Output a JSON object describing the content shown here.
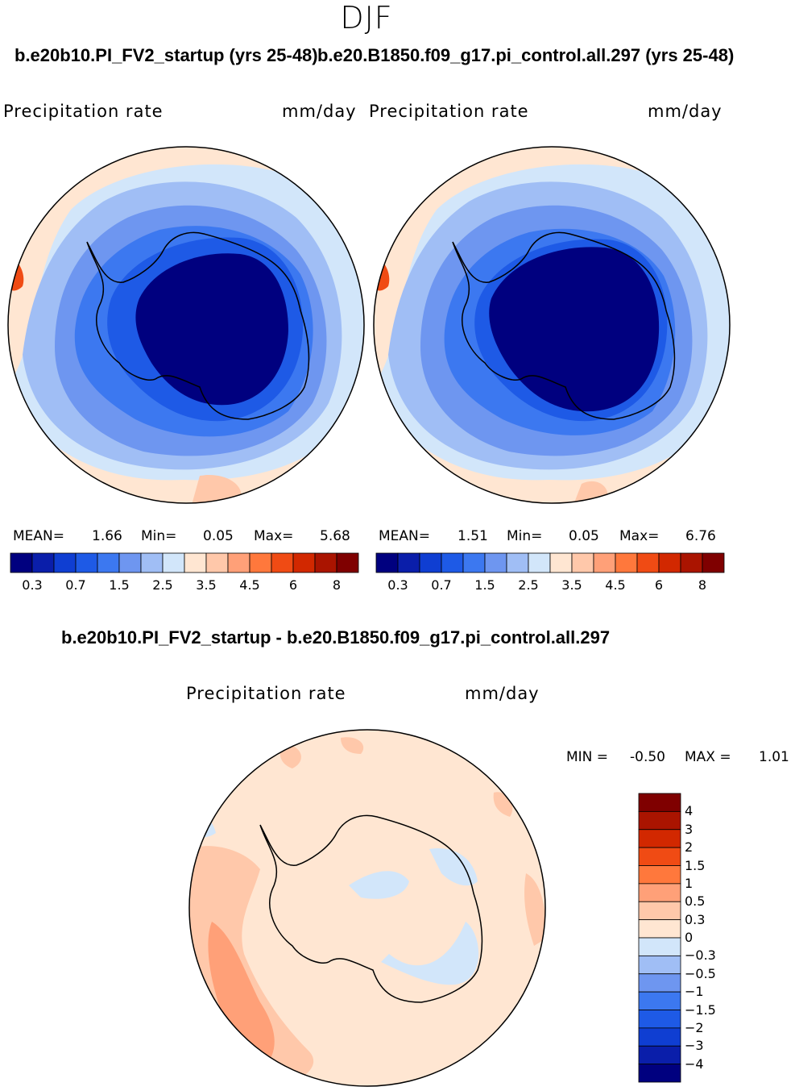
{
  "figure": {
    "season": "DJF",
    "panel_left": {
      "title": "b.e20b10.PI_FV2_startup (yrs 25-48)",
      "variable": "Precipitation rate",
      "units": "mm/day",
      "stats": {
        "mean_label": "MEAN=",
        "mean": "1.66",
        "min_label": "Min=",
        "min": "0.05",
        "max_label": "Max=",
        "max": "5.68"
      }
    },
    "panel_right": {
      "title": "b.e20.B1850.f09_g17.pi_control.all.297 (yrs 25-48)",
      "variable": "Precipitation rate",
      "units": "mm/day",
      "stats": {
        "mean_label": "MEAN=",
        "mean": "1.51",
        "min_label": "Min=",
        "min": "0.05",
        "max_label": "Max=",
        "max": "6.76"
      }
    },
    "panel_diff": {
      "title": "b.e20b10.PI_FV2_startup - b.e20.B1850.f09_g17.pi_control.all.297",
      "variable": "Precipitation rate",
      "units": "mm/day",
      "stats": {
        "min_label": "MIN =",
        "min": "-0.50",
        "max_label": "MAX =",
        "max": "1.01"
      }
    },
    "abs_colorbar": {
      "colors": [
        "#00007f",
        "#0a1eaa",
        "#0f3ed2",
        "#1e5ae6",
        "#3c78f0",
        "#6e96f0",
        "#a0bef5",
        "#d2e6fa",
        "#ffe6d2",
        "#ffc8aa",
        "#ffa078",
        "#ff783c",
        "#f04b14",
        "#d22800",
        "#aa1400",
        "#7f0000"
      ],
      "tick_labels": [
        "0.3",
        "0.7",
        "1.5",
        "2.5",
        "3.5",
        "4.5",
        "6",
        "8"
      ]
    },
    "diff_colorbar": {
      "colors": [
        "#00007f",
        "#0a1eaa",
        "#0f3ed2",
        "#1e5ae6",
        "#3c78f0",
        "#6e96f0",
        "#a0bef5",
        "#d2e6fa",
        "#ffe6d2",
        "#ffc8aa",
        "#ffa078",
        "#ff783c",
        "#f04b14",
        "#d22800",
        "#aa1400",
        "#7f0000"
      ],
      "tick_labels": [
        "4",
        "3",
        "2",
        "1.5",
        "1",
        "0.5",
        "0.3",
        "0",
        "−0.3",
        "−0.5",
        "−1",
        "−1.5",
        "−2",
        "−3",
        "−4"
      ]
    },
    "palette": {
      "ocean_outer": "#a0bef5",
      "ocean_mid": "#6e96f0",
      "ocean_inner": "#3c78f0",
      "coast_band": "#1e5ae6",
      "continent": "#00007f",
      "warm_low": "#ffe6d2",
      "warm_mid": "#ffc8aa",
      "warm_high": "#ffa078",
      "cool_low": "#d2e6fa"
    }
  }
}
